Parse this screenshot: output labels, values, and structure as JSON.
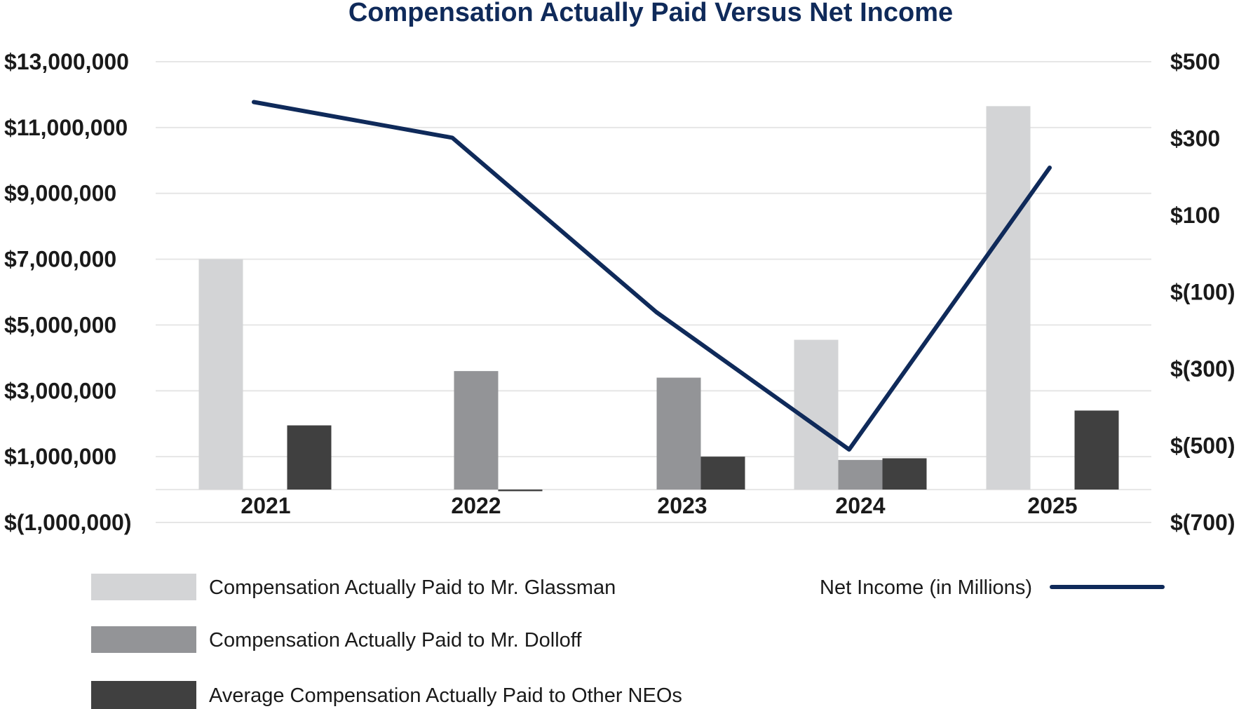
{
  "chart_data": {
    "type": "bar",
    "title": "Compensation Actually Paid Versus Net Income",
    "categories": [
      "2021",
      "2022",
      "2023",
      "2024",
      "2025"
    ],
    "y_left": {
      "ticks": [
        -1000000,
        1000000,
        3000000,
        5000000,
        7000000,
        9000000,
        11000000,
        13000000
      ],
      "tick_labels": [
        "$(1,000,000)",
        "$1,000,000",
        "$3,000,000",
        "$5,000,000",
        "$7,000,000",
        "$9,000,000",
        "$11,000,000",
        "$13,000,000"
      ],
      "ylim": [
        -1000000,
        13000000
      ]
    },
    "y_right": {
      "ticks": [
        -700,
        -500,
        -300,
        -100,
        100,
        300,
        500
      ],
      "tick_labels": [
        "$(700)",
        "$(500)",
        "$(300)",
        "$(100)",
        "$100",
        "$300",
        "$500"
      ],
      "ylim": [
        -700,
        500
      ]
    },
    "series": [
      {
        "name": "Compensation Actually Paid to Mr. Glassman",
        "type": "bar",
        "color": "#d3d4d6",
        "values": [
          7000000,
          null,
          null,
          4550000,
          11650000
        ]
      },
      {
        "name": "Compensation Actually Paid to Mr. Dolloff",
        "type": "bar",
        "color": "#939497",
        "values": [
          null,
          3600000,
          3400000,
          900000,
          null
        ]
      },
      {
        "name": "Average Compensation Actually Paid to Other NEOs",
        "type": "bar",
        "color": "#404040",
        "values": [
          1950000,
          -50000,
          1000000,
          950000,
          2400000
        ]
      },
      {
        "name": "Net Income (in Millions)",
        "type": "line",
        "axis": "right",
        "color": "#0f2a5a",
        "values": [
          395,
          302,
          -152,
          -510,
          224
        ]
      }
    ],
    "legend": "bottom",
    "grid": true
  }
}
